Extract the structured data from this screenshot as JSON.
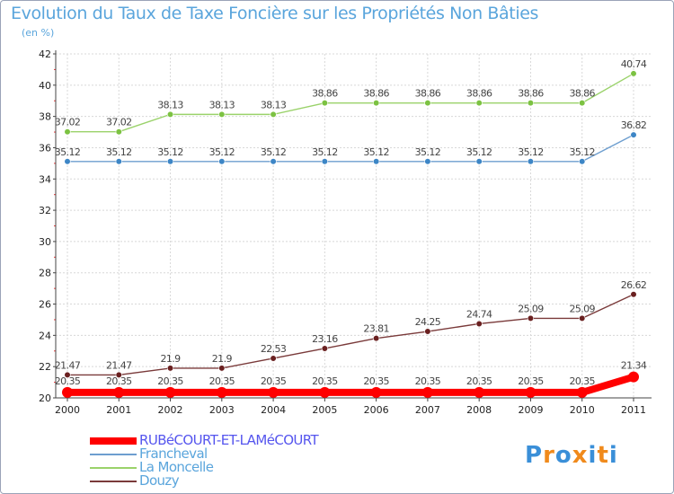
{
  "chart_data": {
    "type": "line",
    "title": "Evolution du Taux de Taxe Foncière sur les Propriétés Non Bâties",
    "unit_label": "(en %)",
    "xlabel": "",
    "ylabel": "(en %)",
    "ylim": [
      20,
      42
    ],
    "yticks": [
      "20",
      "22",
      "24",
      "26",
      "28",
      "30",
      "32",
      "34",
      "36",
      "38",
      "40",
      "42"
    ],
    "categories": [
      "2000",
      "2001",
      "2002",
      "2003",
      "2004",
      "2005",
      "2006",
      "2007",
      "2008",
      "2009",
      "2010",
      "2011"
    ],
    "series": [
      {
        "name": "RUBéCOURT-ET-LAMéCOURT",
        "color": "#ff0000",
        "point_color": "#ff0000",
        "text_color": "#5555ee",
        "values": [
          20.35,
          20.35,
          20.35,
          20.35,
          20.35,
          20.35,
          20.35,
          20.35,
          20.35,
          20.35,
          20.35,
          21.34
        ],
        "labels": [
          "20.35",
          "20.35",
          "20.35",
          "20.35",
          "20.35",
          "20.35",
          "20.35",
          "20.35",
          "20.35",
          "20.35",
          "20.35",
          "21.34"
        ]
      },
      {
        "name": "Francheval",
        "color": "#6d9ecf",
        "point_color": "#3d86c6",
        "text_color": "#5aa5dc",
        "values": [
          35.12,
          35.12,
          35.12,
          35.12,
          35.12,
          35.12,
          35.12,
          35.12,
          35.12,
          35.12,
          35.12,
          36.82
        ],
        "labels": [
          "35.12",
          "35.12",
          "35.12",
          "35.12",
          "35.12",
          "35.12",
          "35.12",
          "35.12",
          "35.12",
          "35.12",
          "35.12",
          "36.82"
        ]
      },
      {
        "name": "La Moncelle",
        "color": "#9ad26a",
        "point_color": "#7cc242",
        "text_color": "#5aa5dc",
        "values": [
          37.02,
          37.02,
          38.13,
          38.13,
          38.13,
          38.86,
          38.86,
          38.86,
          38.86,
          38.86,
          38.86,
          40.74
        ],
        "labels": [
          "37.02",
          "37.02",
          "38.13",
          "38.13",
          "38.13",
          "38.86",
          "38.86",
          "38.86",
          "38.86",
          "38.86",
          "38.86",
          "40.74"
        ]
      },
      {
        "name": "Douzy",
        "color": "#7a3a3a",
        "point_color": "#6a2020",
        "text_color": "#5aa5dc",
        "values": [
          21.47,
          21.47,
          21.9,
          21.9,
          22.53,
          23.16,
          23.81,
          24.25,
          24.74,
          25.09,
          25.09,
          26.62
        ],
        "labels": [
          "21.47",
          "21.47",
          "21.9",
          "21.9",
          "22.53",
          "23.16",
          "23.81",
          "24.25",
          "24.74",
          "25.09",
          "25.09",
          "26.62"
        ]
      }
    ]
  },
  "logo": {
    "text": "Proxiti"
  }
}
